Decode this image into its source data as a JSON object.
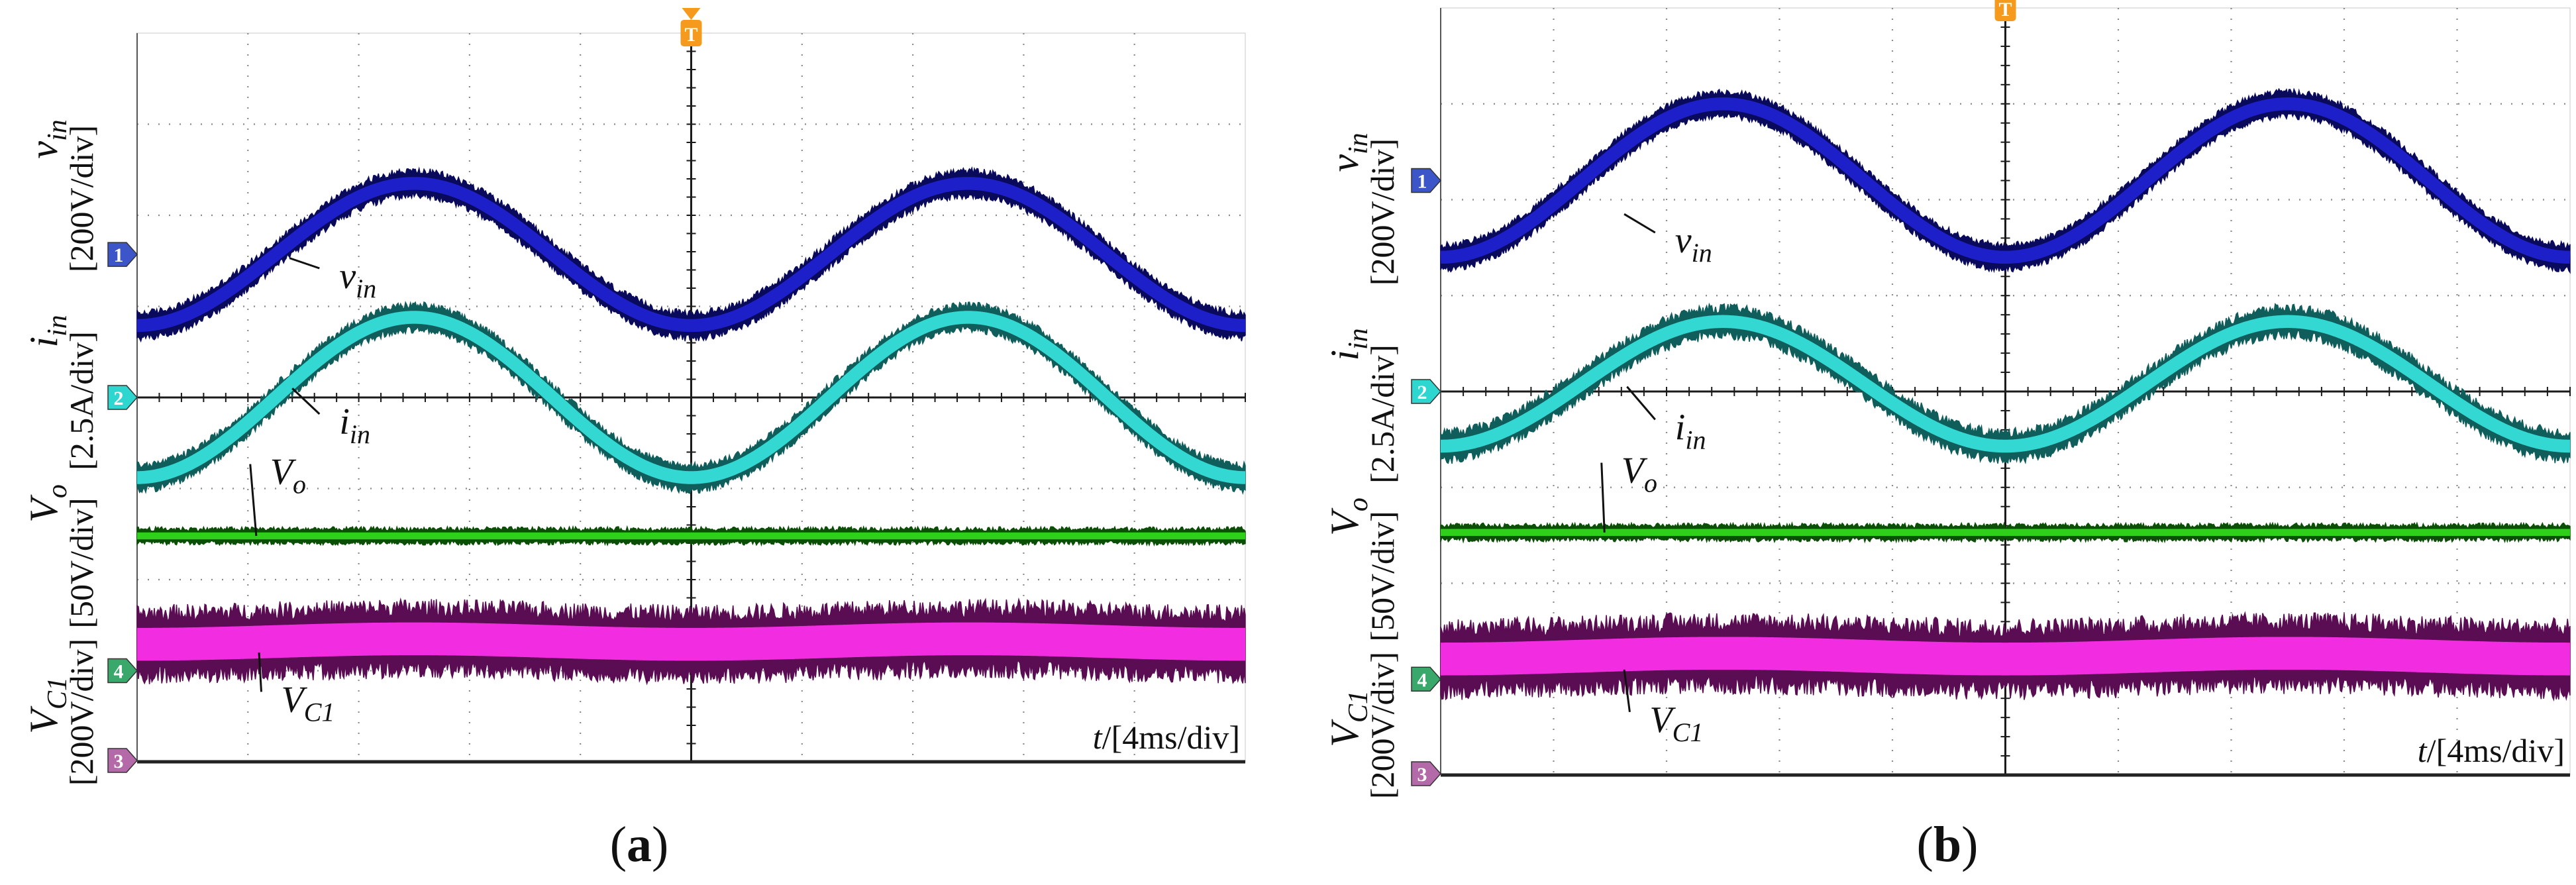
{
  "figure": {
    "panels": [
      "a",
      "b"
    ]
  },
  "colors": {
    "vin": "#1d1fc8",
    "vin_dark": "#0a0a5c",
    "iin": "#34d8d2",
    "iin_dark": "#0f5e5c",
    "vo": "#2ed01a",
    "vo_dark": "#0b4f07",
    "vc1": "#f22ce0",
    "vc1_dark": "#5a0d52",
    "grid": "#8a8a8a",
    "trigger": "#f59a1c",
    "marker_ch1": "#3c55c8",
    "marker_ch2": "#2ed6d0",
    "marker_ch4": "#3aa86a",
    "marker_ch3": "#b46aa8"
  },
  "chart_data": [
    {
      "type": "line",
      "panel_label": "a",
      "title": "",
      "grid": true,
      "divisions": {
        "x": 10,
        "y": 8
      },
      "x_axis": {
        "quantity": "t",
        "unit_label": "/[4ms/div]",
        "ms_per_div": 4,
        "xlim_ms": [
          0,
          40
        ]
      },
      "trigger_marker": "T",
      "y_labels": [
        {
          "symbol": "v",
          "sub": "in",
          "scale": "[200V/div]"
        },
        {
          "symbol": "i",
          "sub": "in",
          "scale": "[2.5A/div]"
        },
        {
          "symbol": "V",
          "sub": "o",
          "scale": "[50V/div]"
        },
        {
          "symbol": "V",
          "sub": "C1",
          "scale": "[200V/div]"
        }
      ],
      "channel_markers": [
        "1",
        "2",
        "4",
        "3"
      ],
      "series": [
        {
          "name": "vin",
          "symbol": "v",
          "sub": "in",
          "kind": "sine",
          "period_ms": 20,
          "amplitude_div": 0.78,
          "center_div": 1.57,
          "phase_ms": 0,
          "peak_ms": 10,
          "noise_div": 0.08,
          "annotation": {
            "label_t_ms": 7.3,
            "label_div": 1.2,
            "arrow_t_ms": 5.5,
            "arrow_div": 1.53
          }
        },
        {
          "name": "iin",
          "symbol": "i",
          "sub": "in",
          "kind": "sine",
          "period_ms": 20,
          "amplitude_div": 0.88,
          "center_div": 0.0,
          "phase_ms": 0,
          "peak_ms": 10,
          "noise_div": 0.08,
          "annotation": {
            "label_t_ms": 7.3,
            "label_div": -0.4,
            "arrow_t_ms": 5.6,
            "arrow_div": 0.1
          }
        },
        {
          "name": "Vo",
          "symbol": "V",
          "sub": "o",
          "kind": "flat",
          "level_div": -1.52,
          "noise_div": 0.05,
          "annotation": {
            "label_t_ms": 4.8,
            "label_div": -0.95,
            "arrow_t_ms": 4.3,
            "arrow_div": -1.52
          }
        },
        {
          "name": "VC1",
          "symbol": "V",
          "sub": "C1",
          "kind": "sine",
          "period_ms": 20,
          "amplitude_div": 0.03,
          "center_div": -2.68,
          "phase_ms": 0,
          "peak_ms": 10,
          "noise_div": 0.2,
          "annotation": {
            "label_t_ms": 5.2,
            "label_div": -3.45,
            "arrow_t_ms": 4.4,
            "arrow_div": -2.8
          }
        }
      ]
    },
    {
      "type": "line",
      "panel_label": "b",
      "title": "",
      "grid": true,
      "divisions": {
        "x": 10,
        "y": 8
      },
      "x_axis": {
        "quantity": "t",
        "unit_label": "/[4ms/div]",
        "ms_per_div": 4,
        "xlim_ms": [
          0,
          40
        ]
      },
      "trigger_marker": "T",
      "y_labels": [
        {
          "symbol": "v",
          "sub": "in",
          "scale": "[200V/div]"
        },
        {
          "symbol": "i",
          "sub": "in",
          "scale": "[2.5A/div]"
        },
        {
          "symbol": "V",
          "sub": "o",
          "scale": "[50V/div]"
        },
        {
          "symbol": "V",
          "sub": "C1",
          "scale": "[200V/div]"
        }
      ],
      "channel_markers": [
        "1",
        "2",
        "4",
        "3"
      ],
      "series": [
        {
          "name": "vin",
          "symbol": "v",
          "sub": "in",
          "kind": "sine",
          "period_ms": 20,
          "amplitude_div": 0.8,
          "center_div": 2.2,
          "phase_ms": 0,
          "peak_ms": 10,
          "noise_div": 0.07,
          "annotation": {
            "label_t_ms": 8.3,
            "label_div": 1.45,
            "arrow_t_ms": 6.5,
            "arrow_div": 1.85
          }
        },
        {
          "name": "iin",
          "symbol": "i",
          "sub": "in",
          "kind": "sine",
          "period_ms": 20,
          "amplitude_div": 0.65,
          "center_div": 0.08,
          "phase_ms": 0,
          "peak_ms": 10,
          "noise_div": 0.1,
          "annotation": {
            "label_t_ms": 8.3,
            "label_div": -0.5,
            "arrow_t_ms": 6.6,
            "arrow_div": 0.05
          }
        },
        {
          "name": "Vo",
          "symbol": "V",
          "sub": "o",
          "kind": "flat",
          "level_div": -1.47,
          "noise_div": 0.05,
          "annotation": {
            "label_t_ms": 6.4,
            "label_div": -0.95,
            "arrow_t_ms": 5.8,
            "arrow_div": -1.47
          }
        },
        {
          "name": "VC1",
          "symbol": "V",
          "sub": "C1",
          "kind": "sine",
          "period_ms": 20,
          "amplitude_div": 0.03,
          "center_div": -2.76,
          "phase_ms": 0,
          "peak_ms": 10,
          "noise_div": 0.2,
          "annotation": {
            "label_t_ms": 7.4,
            "label_div": -3.55,
            "arrow_t_ms": 6.5,
            "arrow_div": -2.9
          }
        }
      ]
    }
  ]
}
